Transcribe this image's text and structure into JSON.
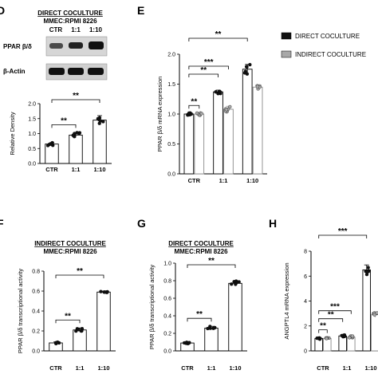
{
  "colors": {
    "direct": "#111111",
    "indirect": "#a8a8a8",
    "bar_fill": "#ffffff",
    "line": "#000000"
  },
  "legend": {
    "direct": "DIRECT COCULTURE",
    "indirect": "INDIRECT COCULTURE",
    "placement": "top-right"
  },
  "panels": [
    {
      "letter": "D",
      "headers": [
        "DIRECT COCULTURE",
        "MMEC:RPMI 8226"
      ],
      "blot": {
        "lanes": [
          "CTR",
          "1:1",
          "1:10"
        ],
        "rows": [
          "PPAR β/δ",
          "β-Actin"
        ]
      }
    },
    {
      "letter": "E"
    },
    {
      "letter": "F",
      "headers": [
        "INDIRECT COCULTURE",
        "MMEC:RPMI 8226"
      ]
    },
    {
      "letter": "G",
      "headers": [
        "DIRECT COCULTURE",
        "MMEC:RPMI 8226"
      ]
    },
    {
      "letter": "H"
    }
  ],
  "chart_data": [
    {
      "id": "D",
      "type": "bar",
      "title": "",
      "ylabel": "Relative Density",
      "categories": [
        "CTR",
        "1:1",
        "1:10"
      ],
      "ylim": [
        0.0,
        2.0
      ],
      "yticks": [
        0.0,
        0.5,
        1.0,
        1.5,
        2.0
      ],
      "series": [
        {
          "values": [
            0.65,
            0.95,
            1.45
          ],
          "errors": [
            0.05,
            0.08,
            0.15
          ]
        }
      ],
      "significance": [
        {
          "from": 0,
          "to": 1,
          "label": "**"
        },
        {
          "from": 0,
          "to": 2,
          "label": "**"
        }
      ]
    },
    {
      "id": "E",
      "type": "bar",
      "title": "",
      "ylabel": "PPAR β/δ mRNA expression",
      "categories": [
        "CTR",
        "1:1",
        "1:10"
      ],
      "ylim": [
        0.0,
        2.0
      ],
      "yticks": [
        0.0,
        0.5,
        1.0,
        1.5,
        2.0
      ],
      "series": [
        {
          "name": "DIRECT COCULTURE",
          "values": [
            1.0,
            1.37,
            1.75
          ],
          "errors": [
            0.01,
            0.03,
            0.08
          ]
        },
        {
          "name": "INDIRECT COCULTURE",
          "values": [
            1.0,
            1.08,
            1.45
          ],
          "errors": [
            0.01,
            0.05,
            0.03
          ]
        }
      ],
      "significance": [
        {
          "from": 0,
          "to": 1,
          "label": "**"
        },
        {
          "from": 0,
          "to": 2,
          "label": "**"
        },
        {
          "from": 0,
          "to": 3,
          "label": "***"
        },
        {
          "from": 0,
          "to": 4,
          "label": "**"
        }
      ]
    },
    {
      "id": "F",
      "type": "bar",
      "title": "",
      "ylabel": "PPAR β/δ transcriptional activity",
      "categories": [
        "CTR",
        "1:1",
        "1:10"
      ],
      "ylim": [
        0.0,
        0.8
      ],
      "yticks": [
        0.0,
        0.2,
        0.4,
        0.6,
        0.8
      ],
      "series": [
        {
          "values": [
            0.08,
            0.21,
            0.59
          ],
          "errors": [
            0.01,
            0.02,
            0.01
          ]
        }
      ],
      "significance": [
        {
          "from": 0,
          "to": 1,
          "label": "**"
        },
        {
          "from": 0,
          "to": 2,
          "label": "**"
        }
      ]
    },
    {
      "id": "G",
      "type": "bar",
      "title": "",
      "ylabel": "PPAR β/δ transcriptional activity",
      "categories": [
        "CTR",
        "1:1",
        "1:10"
      ],
      "ylim": [
        0.0,
        1.0
      ],
      "yticks": [
        0.0,
        0.2,
        0.4,
        0.6,
        0.8,
        1.0
      ],
      "series": [
        {
          "values": [
            0.09,
            0.26,
            0.77
          ],
          "errors": [
            0.01,
            0.02,
            0.03
          ]
        }
      ],
      "significance": [
        {
          "from": 0,
          "to": 1,
          "label": "**"
        },
        {
          "from": 0,
          "to": 2,
          "label": "**"
        }
      ]
    },
    {
      "id": "H",
      "type": "bar",
      "title": "",
      "ylabel": "ANGPTL4 mRNA expression",
      "categories": [
        "CTR",
        "1:1",
        "1:10"
      ],
      "ylim": [
        0,
        8
      ],
      "yticks": [
        0,
        2,
        4,
        6,
        8
      ],
      "series": [
        {
          "name": "DIRECT COCULTURE",
          "values": [
            1.0,
            1.2,
            6.5
          ],
          "errors": [
            0.05,
            0.1,
            0.4
          ]
        },
        {
          "name": "INDIRECT COCULTURE",
          "values": [
            1.0,
            1.1,
            2.9
          ],
          "errors": [
            0.05,
            0.1,
            0.2
          ]
        }
      ],
      "significance": [
        {
          "from": 0,
          "to": 1,
          "label": "**"
        },
        {
          "from": 0,
          "to": 2,
          "label": "**"
        },
        {
          "from": 0,
          "to": 3,
          "label": "***"
        },
        {
          "from": 0,
          "to": 4,
          "label": "***"
        }
      ]
    }
  ]
}
